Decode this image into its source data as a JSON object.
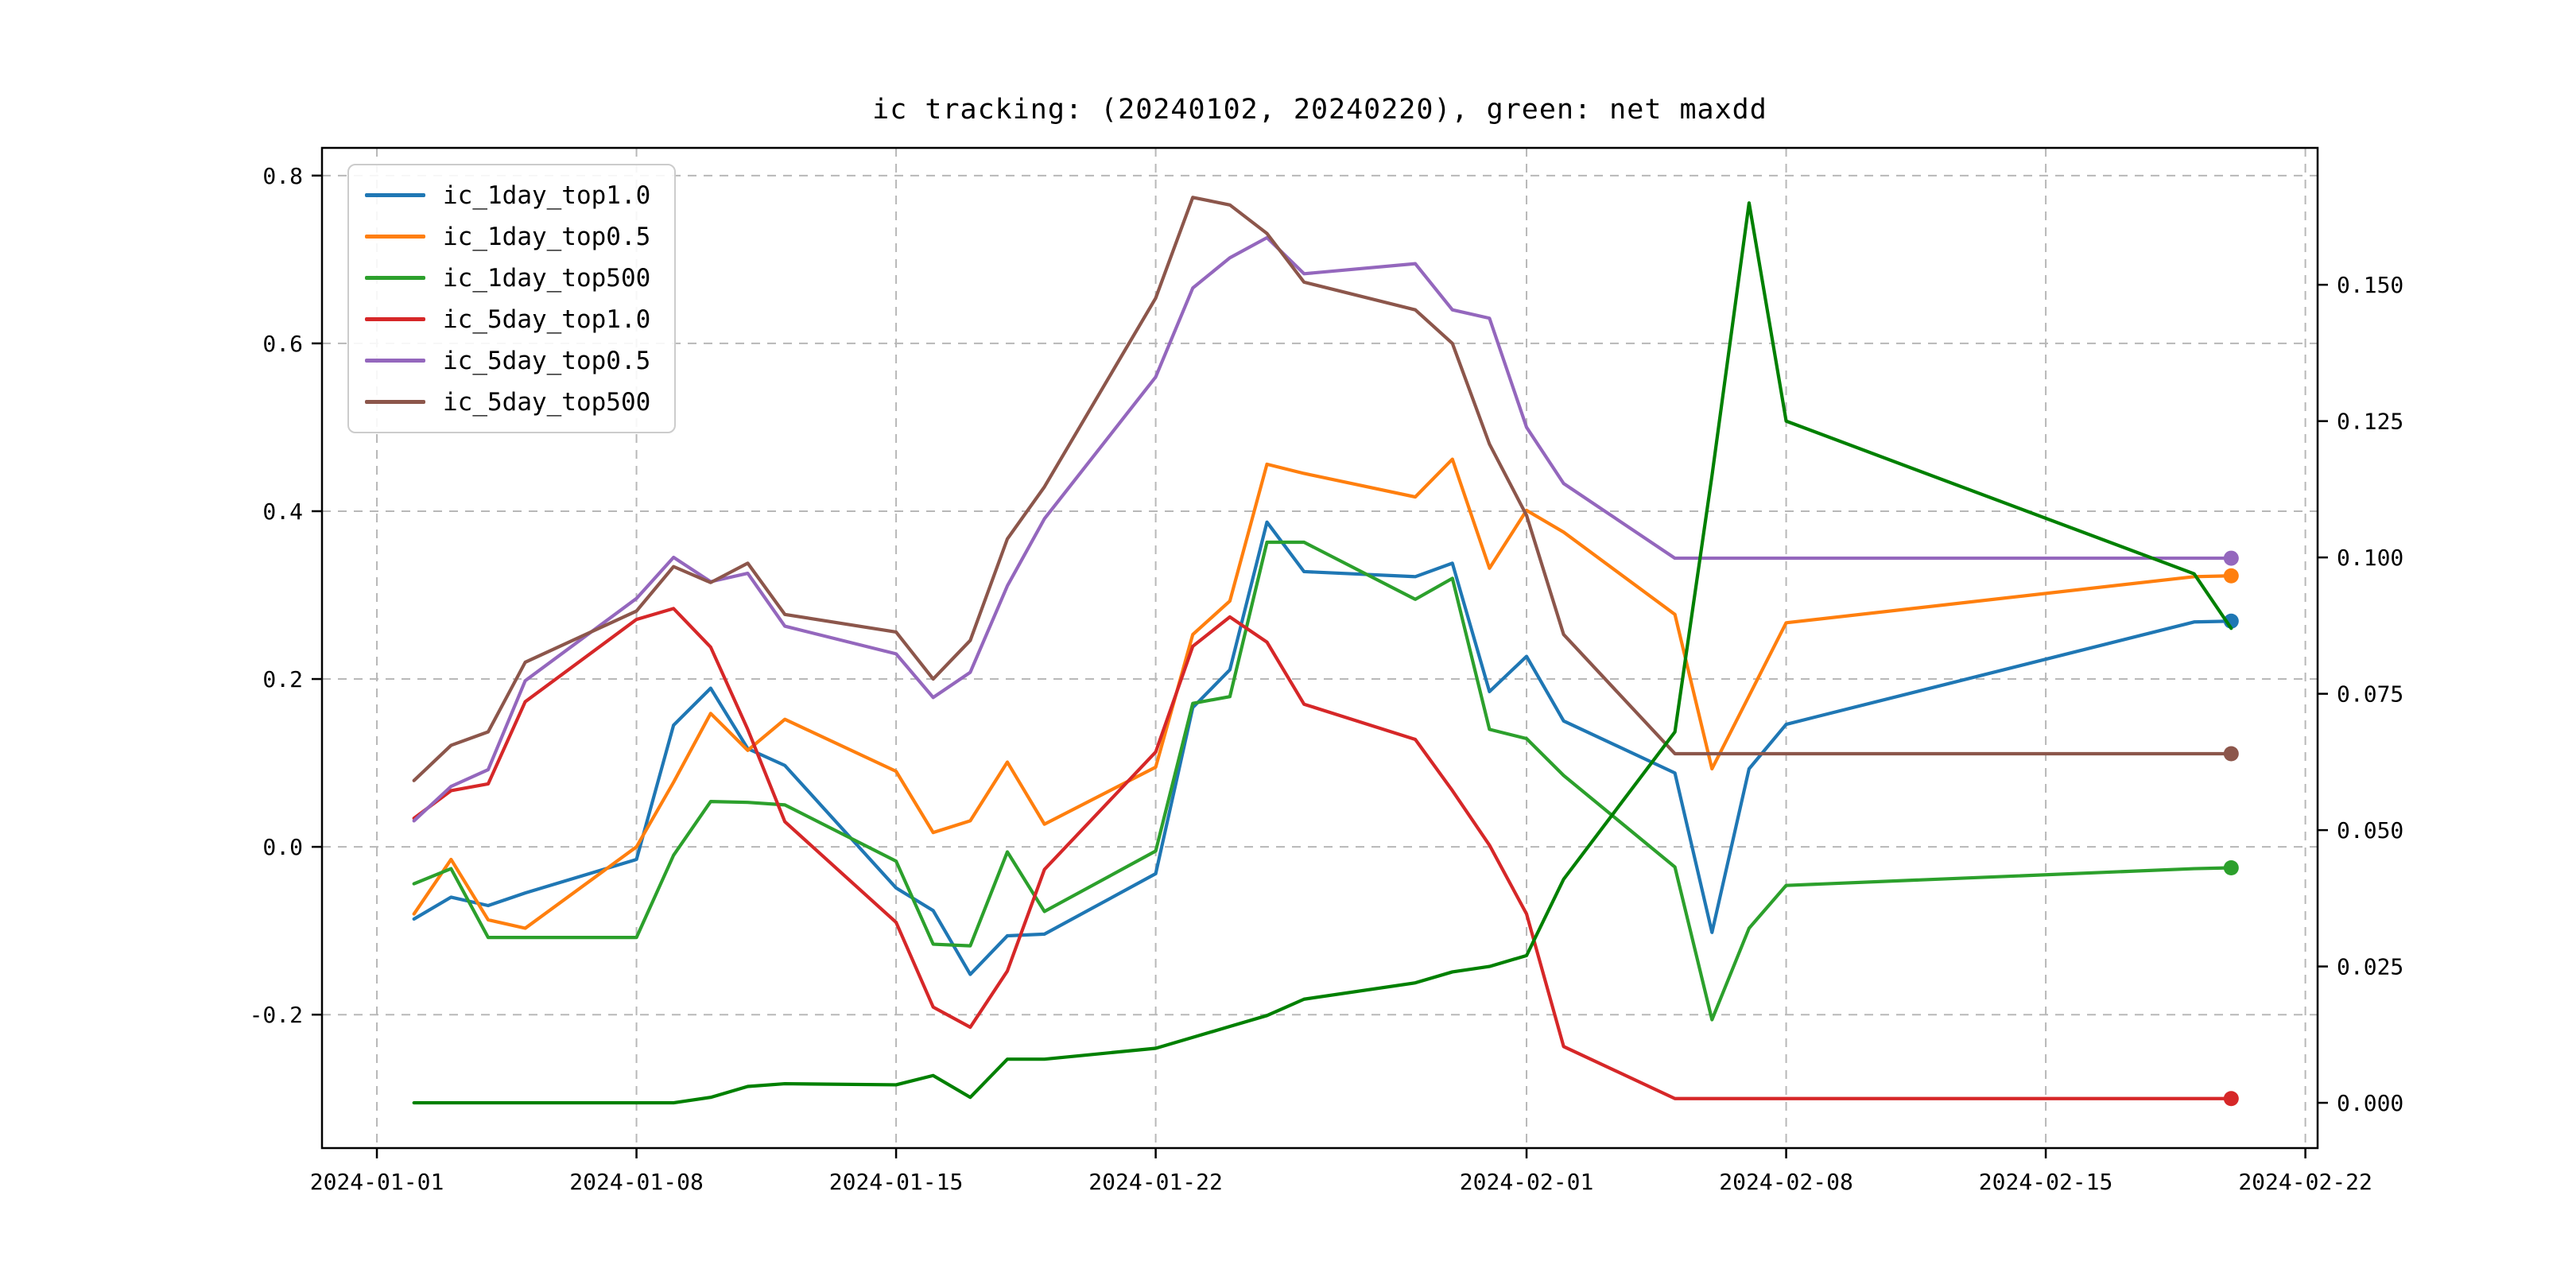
{
  "title": "ic tracking: (20240102, 20240220), green: net maxdd",
  "chart_data": {
    "type": "line",
    "title": "ic tracking: (20240102, 20240220), green: net maxdd",
    "xlabel": "",
    "ylabel_left": "",
    "ylabel_right": "",
    "grid": true,
    "legend_position": "upper-left",
    "background": "#ffffff",
    "grid_color": "#b8b8b8",
    "spine_color": "#000000",
    "x_axis": {
      "tick_day_offsets": [
        0,
        7,
        14,
        21,
        31,
        38,
        45,
        52
      ],
      "tick_labels": [
        "2024-01-01",
        "2024-01-08",
        "2024-01-15",
        "2024-01-22",
        "2024-02-01",
        "2024-02-08",
        "2024-02-15",
        "2024-02-22"
      ],
      "lim_days": [
        -1.48,
        52.33
      ]
    },
    "y_axis_left": {
      "ticks": [
        -0.2,
        0.0,
        0.2,
        0.4,
        0.6,
        0.8
      ],
      "tick_labels": [
        "-0.2",
        "0.0",
        "0.2",
        "0.4",
        "0.6",
        "0.8"
      ],
      "lim": [
        -0.359,
        0.833
      ]
    },
    "y_axis_right": {
      "ticks": [
        0.0,
        0.025,
        0.05,
        0.075,
        0.1,
        0.125,
        0.15
      ],
      "tick_labels": [
        "0.000",
        "0.025",
        "0.050",
        "0.075",
        "0.100",
        "0.125",
        "0.150"
      ],
      "lim": [
        -0.0083,
        0.1751
      ]
    },
    "dates": [
      "2024-01-02",
      "2024-01-03",
      "2024-01-04",
      "2024-01-05",
      "2024-01-08",
      "2024-01-09",
      "2024-01-10",
      "2024-01-11",
      "2024-01-12",
      "2024-01-15",
      "2024-01-16",
      "2024-01-17",
      "2024-01-18",
      "2024-01-19",
      "2024-01-22",
      "2024-01-23",
      "2024-01-24",
      "2024-01-25",
      "2024-01-26",
      "2024-01-29",
      "2024-01-30",
      "2024-01-31",
      "2024-02-01",
      "2024-02-02",
      "2024-02-05",
      "2024-02-06",
      "2024-02-07",
      "2024-02-08",
      "2024-02-19",
      "2024-02-20"
    ],
    "day_offsets": [
      1,
      2,
      3,
      4,
      7,
      8,
      9,
      10,
      11,
      14,
      15,
      16,
      17,
      18,
      21,
      22,
      23,
      24,
      25,
      28,
      29,
      30,
      31,
      32,
      35,
      36,
      37,
      38,
      49,
      50
    ],
    "series": [
      {
        "name": "ic_1day_top1.0",
        "color": "#1f77b4",
        "axis": "left",
        "end_dot": true,
        "in_legend": true,
        "values": [
          -0.086,
          -0.06,
          -0.07,
          -0.055,
          -0.015,
          0.145,
          0.189,
          0.117,
          0.097,
          -0.049,
          -0.076,
          -0.152,
          -0.106,
          -0.104,
          -0.032,
          0.166,
          0.211,
          0.387,
          0.328,
          0.322,
          0.338,
          0.185,
          0.227,
          0.15,
          0.088,
          -0.102,
          0.093,
          0.146,
          0.268,
          0.269
        ]
      },
      {
        "name": "ic_1day_top0.5",
        "color": "#ff7f0e",
        "axis": "left",
        "end_dot": true,
        "in_legend": true,
        "values": [
          -0.08,
          -0.015,
          -0.087,
          -0.097,
          0.0,
          0.077,
          0.159,
          0.115,
          0.152,
          0.09,
          0.017,
          0.031,
          0.101,
          0.027,
          0.095,
          0.253,
          0.293,
          0.456,
          0.445,
          0.417,
          0.462,
          0.332,
          0.401,
          0.375,
          0.277,
          0.093,
          0.18,
          0.267,
          0.322,
          0.323
        ]
      },
      {
        "name": "ic_1day_top500",
        "color": "#2ca02c",
        "axis": "left",
        "end_dot": true,
        "in_legend": true,
        "values": [
          -0.044,
          -0.026,
          -0.108,
          -0.108,
          -0.108,
          -0.01,
          0.054,
          0.053,
          0.05,
          -0.017,
          -0.116,
          -0.118,
          -0.006,
          -0.077,
          -0.005,
          0.171,
          0.179,
          0.363,
          0.363,
          0.295,
          0.32,
          0.14,
          0.129,
          0.085,
          -0.024,
          -0.206,
          -0.097,
          -0.046,
          -0.026,
          -0.025
        ]
      },
      {
        "name": "ic_5day_top1.0",
        "color": "#d62728",
        "axis": "left",
        "end_dot": true,
        "in_legend": true,
        "values": [
          0.034,
          0.067,
          0.075,
          0.173,
          0.271,
          0.284,
          0.238,
          0.14,
          0.03,
          -0.09,
          -0.191,
          -0.215,
          -0.148,
          -0.027,
          0.113,
          0.239,
          0.274,
          0.244,
          0.17,
          0.128,
          0.067,
          0.002,
          -0.08,
          -0.238,
          -0.3,
          -0.3,
          -0.3,
          -0.3,
          -0.3,
          -0.3
        ]
      },
      {
        "name": "ic_5day_top0.5",
        "color": "#9467bd",
        "axis": "left",
        "end_dot": true,
        "in_legend": true,
        "values": [
          0.031,
          0.072,
          0.092,
          0.198,
          0.296,
          0.345,
          0.316,
          0.326,
          0.263,
          0.23,
          0.178,
          0.208,
          0.311,
          0.391,
          0.56,
          0.666,
          0.702,
          0.726,
          0.683,
          0.695,
          0.64,
          0.63,
          0.5,
          0.433,
          0.344,
          0.344,
          0.344,
          0.344,
          0.344,
          0.344
        ]
      },
      {
        "name": "ic_5day_top500",
        "color": "#8c564b",
        "axis": "left",
        "end_dot": true,
        "in_legend": true,
        "values": [
          0.079,
          0.121,
          0.137,
          0.22,
          0.281,
          0.334,
          0.315,
          0.338,
          0.277,
          0.256,
          0.2,
          0.246,
          0.367,
          0.429,
          0.654,
          0.774,
          0.765,
          0.731,
          0.673,
          0.64,
          0.6,
          0.48,
          0.395,
          0.253,
          0.111,
          0.111,
          0.111,
          0.111,
          0.111,
          0.111
        ]
      },
      {
        "name": "net_maxdd",
        "color": "#008000",
        "axis": "right",
        "end_dot": false,
        "in_legend": false,
        "values": [
          0.0,
          0.0,
          0.0,
          0.0,
          0.0,
          0.0,
          0.001,
          0.003,
          0.0035,
          0.0033,
          0.005,
          0.001,
          0.008,
          0.008,
          0.01,
          0.012,
          0.014,
          0.016,
          0.019,
          0.022,
          0.024,
          0.025,
          0.027,
          0.041,
          0.068,
          0.115,
          0.165,
          0.125,
          0.097,
          0.087
        ]
      }
    ],
    "legend_entries": [
      "ic_1day_top1.0",
      "ic_1day_top0.5",
      "ic_1day_top500",
      "ic_5day_top1.0",
      "ic_5day_top0.5",
      "ic_5day_top500"
    ]
  },
  "layout_note_values_are_data_not_layout": true
}
